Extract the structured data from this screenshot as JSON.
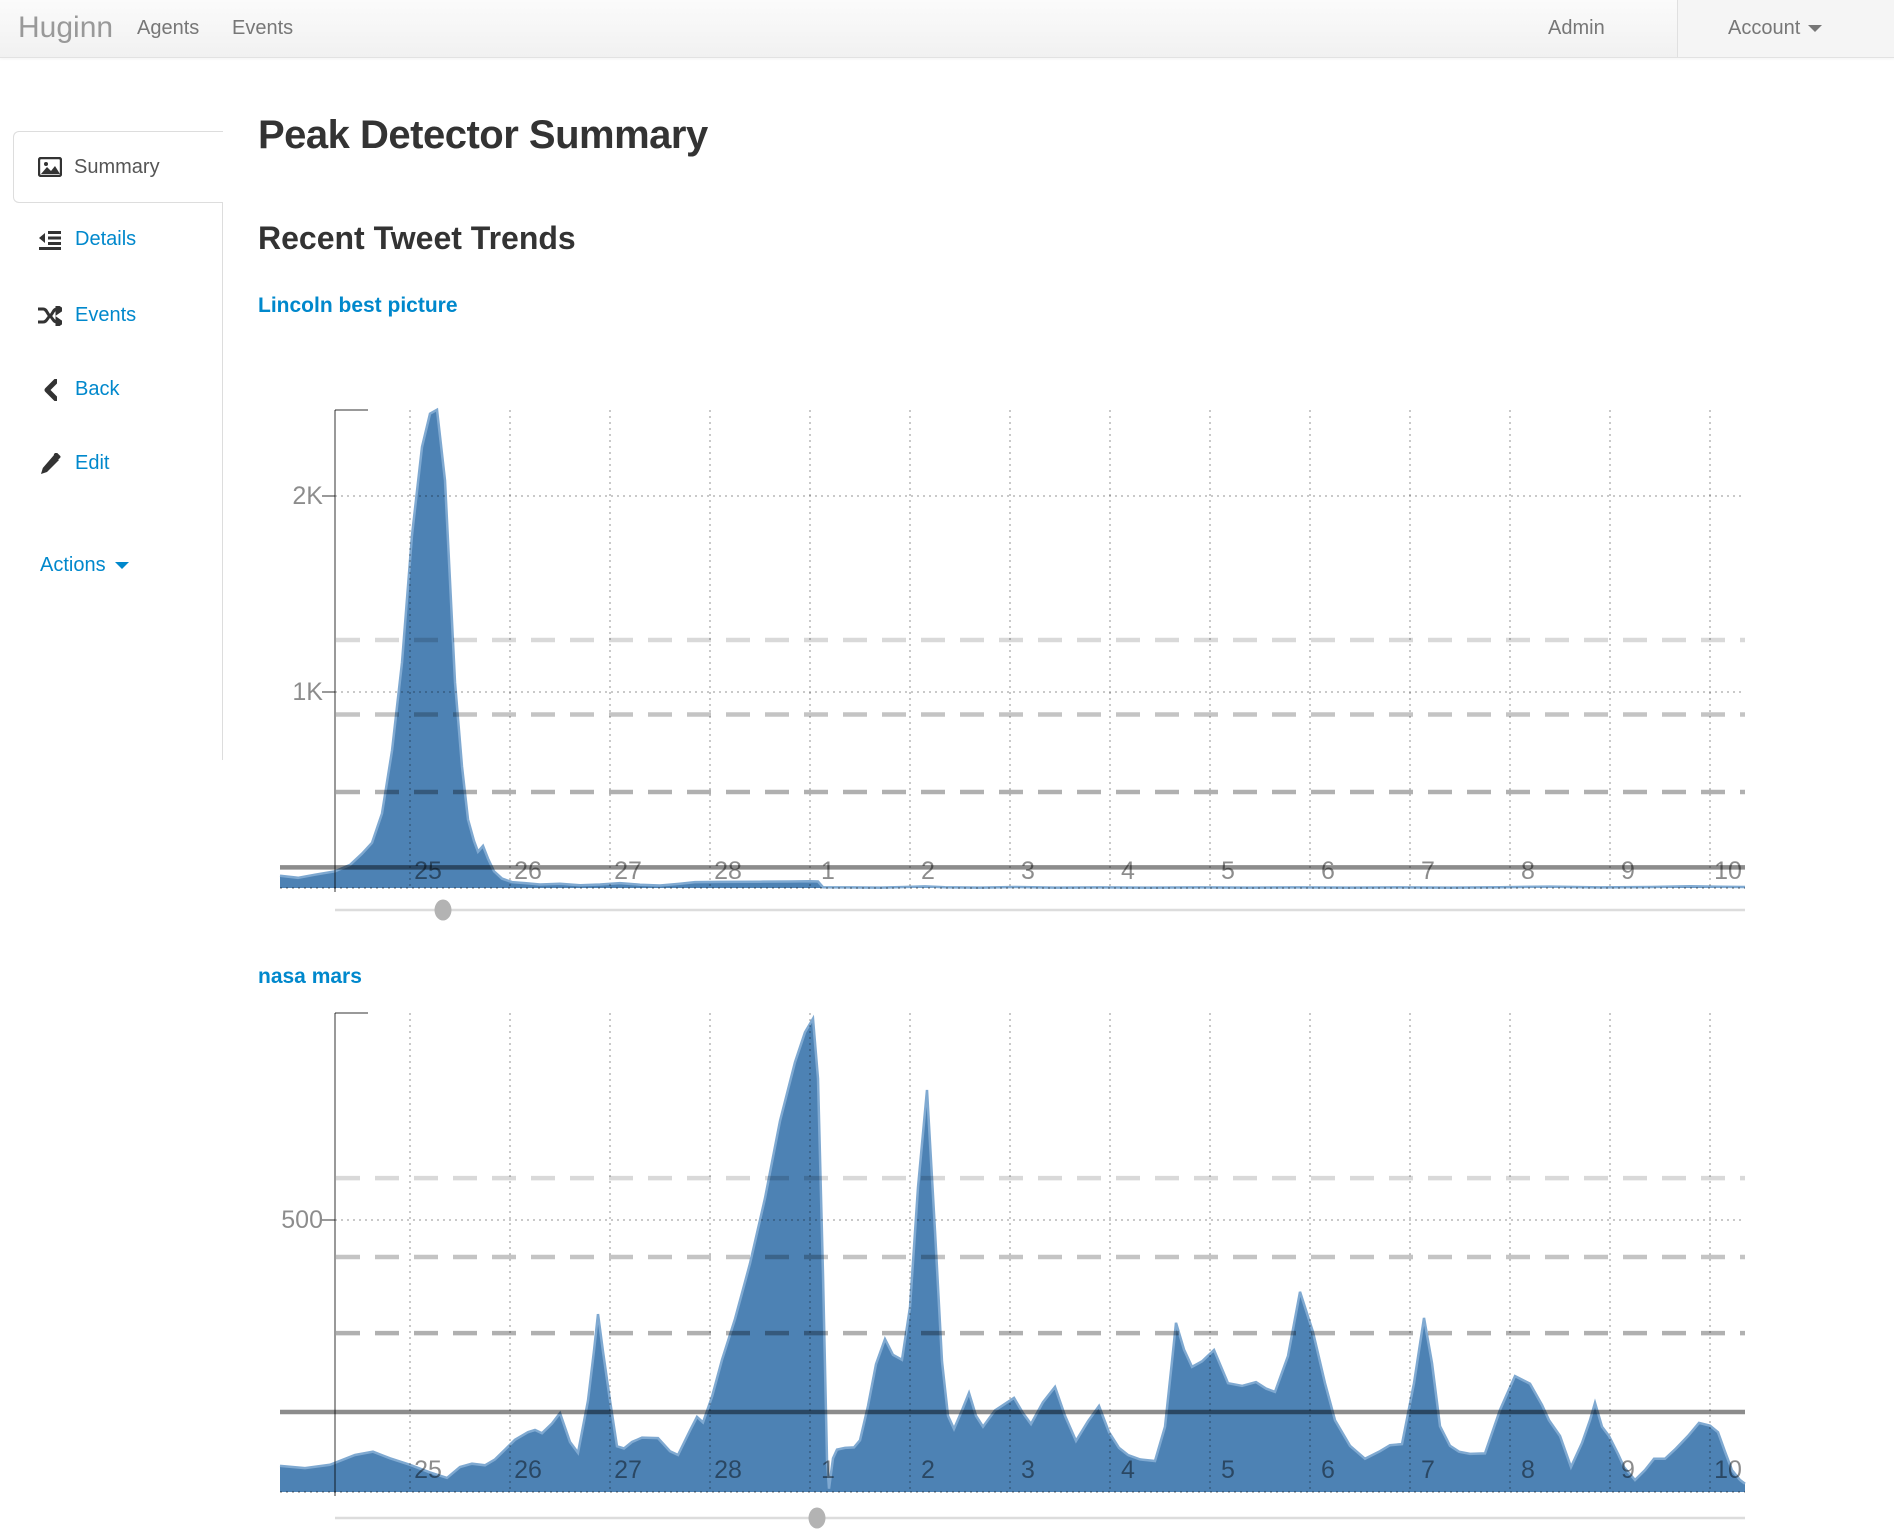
{
  "navbar": {
    "brand": "Huginn",
    "items_left": [
      {
        "label": "Agents"
      },
      {
        "label": "Events"
      }
    ],
    "items_right": [
      {
        "label": "Admin"
      },
      {
        "label": "Account"
      }
    ]
  },
  "sidebar": {
    "active_tab": {
      "label": "Summary",
      "icon": "image-icon"
    },
    "links": [
      {
        "label": "Details",
        "icon": "outdent-icon"
      },
      {
        "label": "Events",
        "icon": "shuffle-icon"
      },
      {
        "label": "Back",
        "icon": "chevron-left-icon"
      },
      {
        "label": "Edit",
        "icon": "pencil-icon"
      }
    ],
    "dropdown": {
      "label": "Actions"
    }
  },
  "page": {
    "title": "Peak Detector Summary",
    "section_heading": "Recent Tweet Trends"
  },
  "colors": {
    "link_blue": "#0088cc",
    "heading": "#333333",
    "area_fill": "#4d82b4",
    "area_stroke": "#7fa9d1",
    "grid_dotted": "rgba(0,0,0,0.21)",
    "baseline_dotted": "rgba(0,0,0,0.28)",
    "axis_line": "rgba(0,0,0,0.40)",
    "tick_label": "rgba(0,0,0,0.45)",
    "mean_line": "rgba(0,0,0,0.45)",
    "threshold_lines": [
      "rgba(0,0,0,0.15)",
      "rgba(0,0,0,0.23)",
      "rgba(0,0,0,0.31)"
    ],
    "slider_track": "#dcdcdc",
    "slider_handle": "#b3b3b3"
  },
  "chart_data": [
    {
      "type": "area",
      "title": "Lincoln best picture",
      "x_axis": {
        "unit": "day-of-month (Feb 25 - Mar 10)",
        "range_u": [
          23.7,
          38.35
        ],
        "ticks": [
          {
            "u": 25,
            "label": "25"
          },
          {
            "u": 26,
            "label": "26"
          },
          {
            "u": 27,
            "label": "27"
          },
          {
            "u": 28,
            "label": "28"
          },
          {
            "u": 29,
            "label": "1"
          },
          {
            "u": 30,
            "label": "2"
          },
          {
            "u": 31,
            "label": "3"
          },
          {
            "u": 32,
            "label": "4"
          },
          {
            "u": 33,
            "label": "5"
          },
          {
            "u": 34,
            "label": "6"
          },
          {
            "u": 35,
            "label": "7"
          },
          {
            "u": 36,
            "label": "8"
          },
          {
            "u": 37,
            "label": "9"
          },
          {
            "u": 38,
            "label": "10"
          }
        ]
      },
      "y_axis": {
        "range": [
          0,
          2440
        ],
        "ticks": [
          {
            "value": 1000,
            "label": "1K"
          },
          {
            "value": 2000,
            "label": "2K"
          }
        ]
      },
      "mean_line_value": 105,
      "threshold_values": [
        1265,
        885,
        490
      ],
      "slider_position_u": 25.33,
      "points": [
        [
          23.7,
          62
        ],
        [
          23.88,
          52
        ],
        [
          24.05,
          68
        ],
        [
          24.25,
          85
        ],
        [
          24.4,
          118
        ],
        [
          24.52,
          175
        ],
        [
          24.62,
          230
        ],
        [
          24.72,
          380
        ],
        [
          24.82,
          700
        ],
        [
          24.92,
          1150
        ],
        [
          25.02,
          1800
        ],
        [
          25.12,
          2250
        ],
        [
          25.2,
          2420
        ],
        [
          25.27,
          2440
        ],
        [
          25.35,
          2080
        ],
        [
          25.45,
          1050
        ],
        [
          25.52,
          620
        ],
        [
          25.58,
          350
        ],
        [
          25.64,
          240
        ],
        [
          25.68,
          185
        ],
        [
          25.73,
          215
        ],
        [
          25.78,
          150
        ],
        [
          25.84,
          85
        ],
        [
          25.92,
          48
        ],
        [
          26.02,
          30
        ],
        [
          26.15,
          25
        ],
        [
          26.3,
          18
        ],
        [
          26.5,
          22
        ],
        [
          26.7,
          14
        ],
        [
          26.9,
          18
        ],
        [
          27.1,
          25
        ],
        [
          27.3,
          17
        ],
        [
          27.5,
          13
        ],
        [
          27.7,
          22
        ],
        [
          27.85,
          30
        ],
        [
          28.1,
          31
        ],
        [
          28.5,
          32
        ],
        [
          28.8,
          33
        ],
        [
          29.0,
          34
        ],
        [
          29.08,
          33
        ],
        [
          29.13,
          4
        ],
        [
          29.4,
          3
        ],
        [
          29.7,
          2
        ],
        [
          29.95,
          5
        ],
        [
          30.15,
          8
        ],
        [
          30.35,
          4
        ],
        [
          30.7,
          2
        ],
        [
          31.05,
          5
        ],
        [
          31.45,
          2
        ],
        [
          31.9,
          3
        ],
        [
          32.4,
          2
        ],
        [
          32.9,
          3
        ],
        [
          33.4,
          2
        ],
        [
          33.9,
          3
        ],
        [
          34.4,
          2
        ],
        [
          34.9,
          3
        ],
        [
          35.4,
          2
        ],
        [
          35.9,
          4
        ],
        [
          36.4,
          7
        ],
        [
          36.9,
          3
        ],
        [
          37.4,
          5
        ],
        [
          37.8,
          9
        ],
        [
          38.1,
          6
        ],
        [
          38.35,
          5
        ]
      ]
    },
    {
      "type": "area",
      "title": "nasa mars",
      "x_axis": {
        "unit": "day-of-month (Feb 25 - Mar 10)",
        "range_u": [
          23.7,
          38.35
        ],
        "ticks": [
          {
            "u": 25,
            "label": "25"
          },
          {
            "u": 26,
            "label": "26"
          },
          {
            "u": 27,
            "label": "27"
          },
          {
            "u": 28,
            "label": "28"
          },
          {
            "u": 29,
            "label": "1"
          },
          {
            "u": 30,
            "label": "2"
          },
          {
            "u": 31,
            "label": "3"
          },
          {
            "u": 32,
            "label": "4"
          },
          {
            "u": 33,
            "label": "5"
          },
          {
            "u": 34,
            "label": "6"
          },
          {
            "u": 35,
            "label": "7"
          },
          {
            "u": 36,
            "label": "8"
          },
          {
            "u": 37,
            "label": "9"
          },
          {
            "u": 38,
            "label": "10"
          }
        ]
      },
      "y_axis": {
        "range": [
          0,
          880
        ],
        "ticks": [
          {
            "value": 500,
            "label": "500"
          }
        ]
      },
      "mean_line_value": 147,
      "threshold_values": [
        577,
        432,
        292
      ],
      "slider_position_u": 29.07,
      "points": [
        [
          23.7,
          48
        ],
        [
          23.95,
          44
        ],
        [
          24.2,
          50
        ],
        [
          24.45,
          68
        ],
        [
          24.63,
          74
        ],
        [
          24.8,
          62
        ],
        [
          25.0,
          50
        ],
        [
          25.2,
          36
        ],
        [
          25.37,
          26
        ],
        [
          25.5,
          46
        ],
        [
          25.62,
          52
        ],
        [
          25.75,
          49
        ],
        [
          25.85,
          60
        ],
        [
          25.95,
          78
        ],
        [
          26.05,
          96
        ],
        [
          26.18,
          110
        ],
        [
          26.25,
          114
        ],
        [
          26.32,
          108
        ],
        [
          26.42,
          126
        ],
        [
          26.5,
          145
        ],
        [
          26.6,
          92
        ],
        [
          26.68,
          72
        ],
        [
          26.78,
          168
        ],
        [
          26.84,
          260
        ],
        [
          26.88,
          327
        ],
        [
          26.93,
          258
        ],
        [
          27.0,
          168
        ],
        [
          27.07,
          84
        ],
        [
          27.14,
          80
        ],
        [
          27.22,
          92
        ],
        [
          27.32,
          100
        ],
        [
          27.48,
          99
        ],
        [
          27.6,
          75
        ],
        [
          27.68,
          68
        ],
        [
          27.8,
          113
        ],
        [
          27.87,
          138
        ],
        [
          27.93,
          128
        ],
        [
          28.02,
          175
        ],
        [
          28.12,
          243
        ],
        [
          28.25,
          318
        ],
        [
          28.4,
          420
        ],
        [
          28.55,
          540
        ],
        [
          28.7,
          682
        ],
        [
          28.85,
          790
        ],
        [
          28.95,
          845
        ],
        [
          29.03,
          870
        ],
        [
          29.08,
          760
        ],
        [
          29.13,
          400
        ],
        [
          29.17,
          60
        ],
        [
          29.19,
          6
        ],
        [
          29.23,
          62
        ],
        [
          29.27,
          78
        ],
        [
          29.35,
          81
        ],
        [
          29.44,
          82
        ],
        [
          29.5,
          95
        ],
        [
          29.58,
          158
        ],
        [
          29.66,
          235
        ],
        [
          29.75,
          281
        ],
        [
          29.83,
          252
        ],
        [
          29.92,
          243
        ],
        [
          30.0,
          340
        ],
        [
          30.08,
          560
        ],
        [
          30.17,
          739
        ],
        [
          30.25,
          480
        ],
        [
          30.32,
          240
        ],
        [
          30.38,
          140
        ],
        [
          30.44,
          116
        ],
        [
          30.52,
          150
        ],
        [
          30.59,
          182
        ],
        [
          30.66,
          140
        ],
        [
          30.73,
          120
        ],
        [
          30.85,
          150
        ],
        [
          31.04,
          173
        ],
        [
          31.13,
          145
        ],
        [
          31.21,
          125
        ],
        [
          31.33,
          165
        ],
        [
          31.45,
          193
        ],
        [
          31.55,
          140
        ],
        [
          31.66,
          94
        ],
        [
          31.78,
          130
        ],
        [
          31.89,
          158
        ],
        [
          31.99,
          110
        ],
        [
          32.09,
          81
        ],
        [
          32.18,
          68
        ],
        [
          32.3,
          60
        ],
        [
          32.45,
          57
        ],
        [
          32.55,
          120
        ],
        [
          32.62,
          240
        ],
        [
          32.66,
          311
        ],
        [
          32.74,
          262
        ],
        [
          32.82,
          230
        ],
        [
          32.92,
          240
        ],
        [
          33.04,
          261
        ],
        [
          33.18,
          200
        ],
        [
          33.32,
          195
        ],
        [
          33.46,
          202
        ],
        [
          33.56,
          190
        ],
        [
          33.65,
          184
        ],
        [
          33.78,
          250
        ],
        [
          33.9,
          368
        ],
        [
          34.03,
          294
        ],
        [
          34.15,
          200
        ],
        [
          34.25,
          132
        ],
        [
          34.4,
          85
        ],
        [
          34.55,
          61
        ],
        [
          34.7,
          75
        ],
        [
          34.8,
          86
        ],
        [
          34.92,
          88
        ],
        [
          35.04,
          200
        ],
        [
          35.14,
          320
        ],
        [
          35.22,
          237
        ],
        [
          35.3,
          121
        ],
        [
          35.4,
          85
        ],
        [
          35.49,
          74
        ],
        [
          35.6,
          70
        ],
        [
          35.75,
          71
        ],
        [
          35.9,
          151
        ],
        [
          36.05,
          213
        ],
        [
          36.2,
          199
        ],
        [
          36.32,
          160
        ],
        [
          36.39,
          132
        ],
        [
          36.5,
          103
        ],
        [
          36.61,
          46
        ],
        [
          36.72,
          90
        ],
        [
          36.8,
          132
        ],
        [
          36.85,
          164
        ],
        [
          36.92,
          120
        ],
        [
          36.99,
          103
        ],
        [
          37.08,
          70
        ],
        [
          37.14,
          46
        ],
        [
          37.25,
          22
        ],
        [
          37.35,
          40
        ],
        [
          37.44,
          61
        ],
        [
          37.55,
          61
        ],
        [
          37.66,
          80
        ],
        [
          37.78,
          103
        ],
        [
          37.89,
          127
        ],
        [
          38.0,
          122
        ],
        [
          38.08,
          110
        ],
        [
          38.15,
          74
        ],
        [
          38.22,
          40
        ],
        [
          38.3,
          22
        ],
        [
          38.35,
          15
        ]
      ]
    }
  ]
}
